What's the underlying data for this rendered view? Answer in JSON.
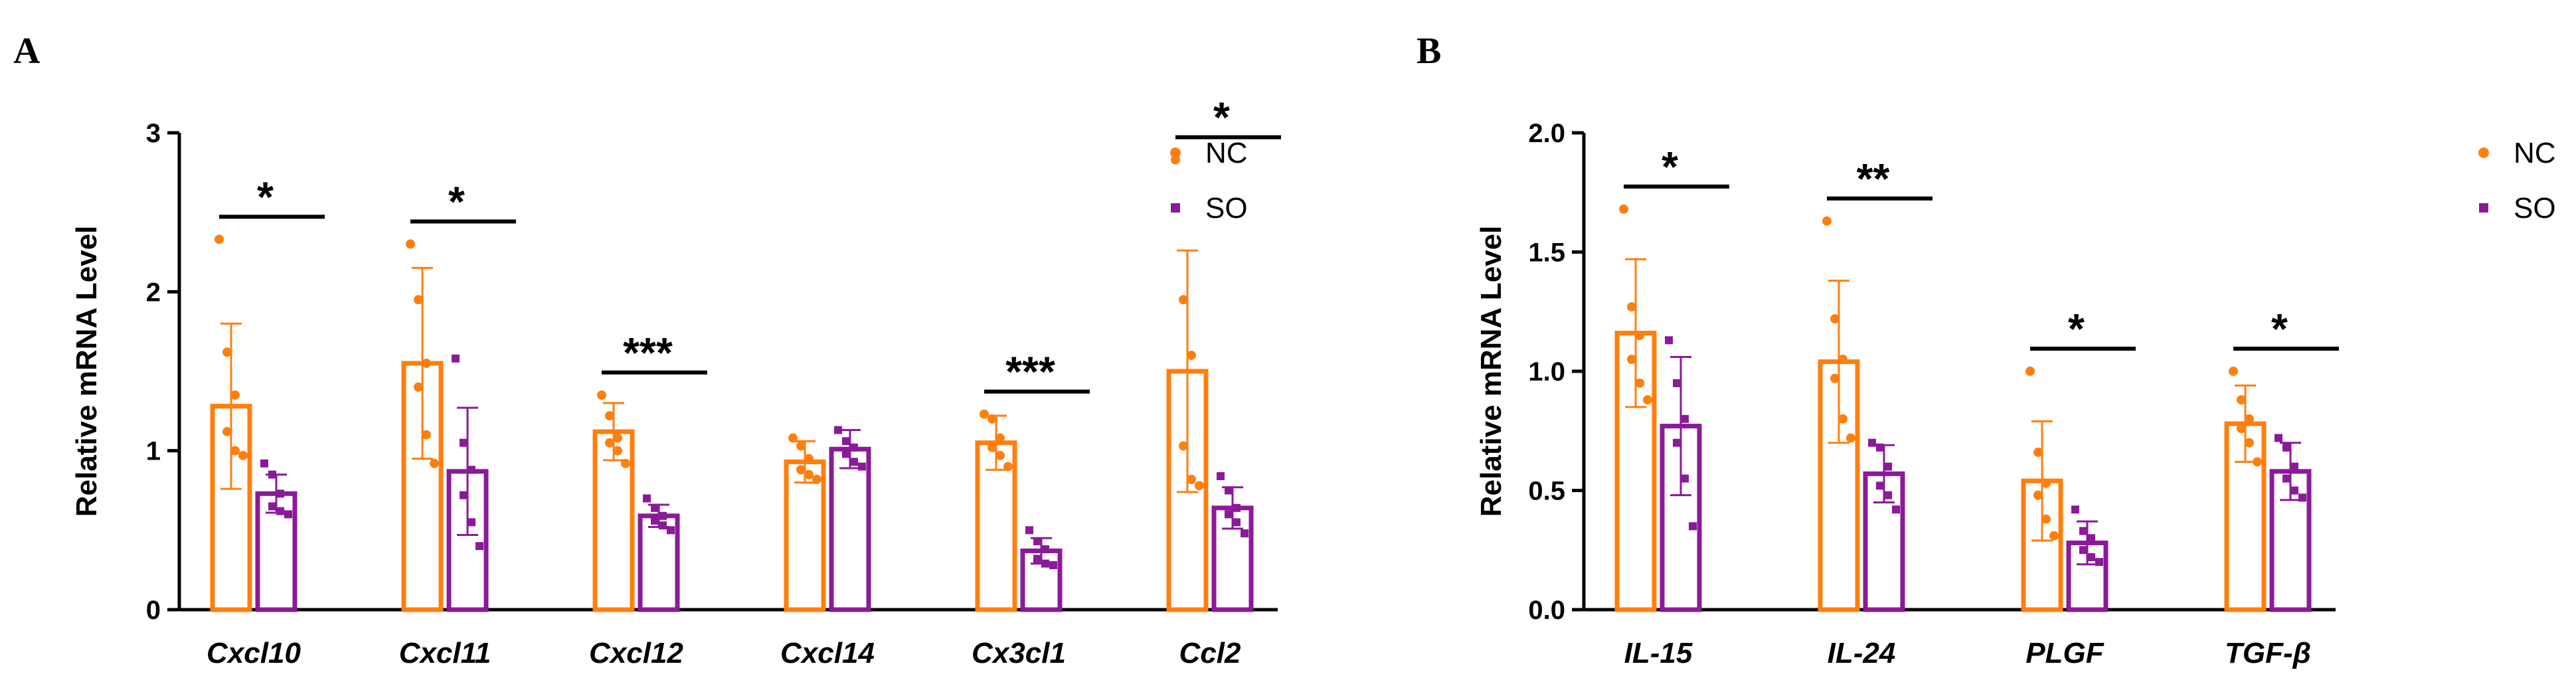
{
  "colors": {
    "NC": "#ff7f0e",
    "SO": "#8b1a9a",
    "axis": "#000000"
  },
  "chart_data": [
    {
      "panel": "A",
      "type": "bar",
      "ylabel": "Relative mRNA Level",
      "ylim": [
        0,
        3
      ],
      "yticks": [
        "0",
        "1",
        "2",
        "3"
      ],
      "categories": [
        "Cxcl10",
        "Cxcl11",
        "Cxcl12",
        "Cxcl14",
        "Cx3cl1",
        "Ccl2"
      ],
      "legend": {
        "position": "top-right",
        "entries": [
          "NC",
          "SO"
        ]
      },
      "series": [
        {
          "name": "NC",
          "values": [
            1.28,
            1.55,
            1.12,
            0.93,
            1.05,
            1.5
          ],
          "errors": [
            0.52,
            0.6,
            0.18,
            0.13,
            0.17,
            0.76
          ],
          "points": [
            [
              2.33,
              1.62,
              1.35,
              1.12,
              1.0,
              0.97
            ],
            [
              2.3,
              1.95,
              1.55,
              1.4,
              1.1,
              0.92
            ],
            [
              1.35,
              1.22,
              1.08,
              1.05,
              1.0,
              0.92
            ],
            [
              1.08,
              1.03,
              0.95,
              0.88,
              0.85,
              0.82
            ],
            [
              1.23,
              1.2,
              1.08,
              1.02,
              0.97,
              0.9
            ],
            [
              2.83,
              1.95,
              1.6,
              1.03,
              0.82,
              0.78
            ]
          ]
        },
        {
          "name": "SO",
          "values": [
            0.73,
            0.87,
            0.59,
            1.01,
            0.37,
            0.64
          ],
          "errors": [
            0.12,
            0.4,
            0.07,
            0.12,
            0.08,
            0.13
          ],
          "points": [
            [
              0.92,
              0.85,
              0.73,
              0.65,
              0.62,
              0.6
            ],
            [
              1.58,
              1.05,
              0.88,
              0.72,
              0.55,
              0.4
            ],
            [
              0.7,
              0.64,
              0.59,
              0.56,
              0.53,
              0.5
            ],
            [
              1.13,
              1.06,
              1.02,
              0.98,
              0.93,
              0.9
            ],
            [
              0.5,
              0.43,
              0.38,
              0.32,
              0.29,
              0.28
            ],
            [
              0.84,
              0.75,
              0.64,
              0.6,
              0.55,
              0.48
            ]
          ]
        }
      ],
      "significance": [
        "*",
        "*",
        "***",
        "",
        "***",
        "*"
      ]
    },
    {
      "panel": "B",
      "type": "bar",
      "ylabel": "Relative mRNA Level",
      "ylim": [
        0,
        2.0
      ],
      "yticks": [
        "0.0",
        "0.5",
        "1.0",
        "1.5",
        "2.0"
      ],
      "categories": [
        "IL-15",
        "IL-24",
        "PLGF",
        "TGF-β"
      ],
      "legend": {
        "position": "top-right",
        "entries": [
          "NC",
          "SO"
        ]
      },
      "series": [
        {
          "name": "NC",
          "values": [
            1.16,
            1.04,
            0.54,
            0.78
          ],
          "errors": [
            0.31,
            0.34,
            0.25,
            0.16
          ],
          "points": [
            [
              1.68,
              1.27,
              1.15,
              1.05,
              0.95,
              0.88
            ],
            [
              1.63,
              1.22,
              1.05,
              0.97,
              0.8,
              0.72
            ],
            [
              1.0,
              0.66,
              0.53,
              0.48,
              0.38,
              0.31
            ],
            [
              1.0,
              0.88,
              0.8,
              0.76,
              0.7,
              0.62
            ]
          ]
        },
        {
          "name": "SO",
          "values": [
            0.77,
            0.57,
            0.28,
            0.58
          ],
          "errors": [
            0.29,
            0.12,
            0.09,
            0.12
          ],
          "points": [
            [
              1.13,
              0.95,
              0.8,
              0.7,
              0.55,
              0.35
            ],
            [
              0.7,
              0.68,
              0.6,
              0.52,
              0.48,
              0.42
            ],
            [
              0.42,
              0.33,
              0.3,
              0.25,
              0.22,
              0.2
            ],
            [
              0.72,
              0.68,
              0.6,
              0.55,
              0.5,
              0.47
            ]
          ]
        }
      ],
      "significance": [
        "*",
        "**",
        "*",
        "*"
      ]
    }
  ]
}
